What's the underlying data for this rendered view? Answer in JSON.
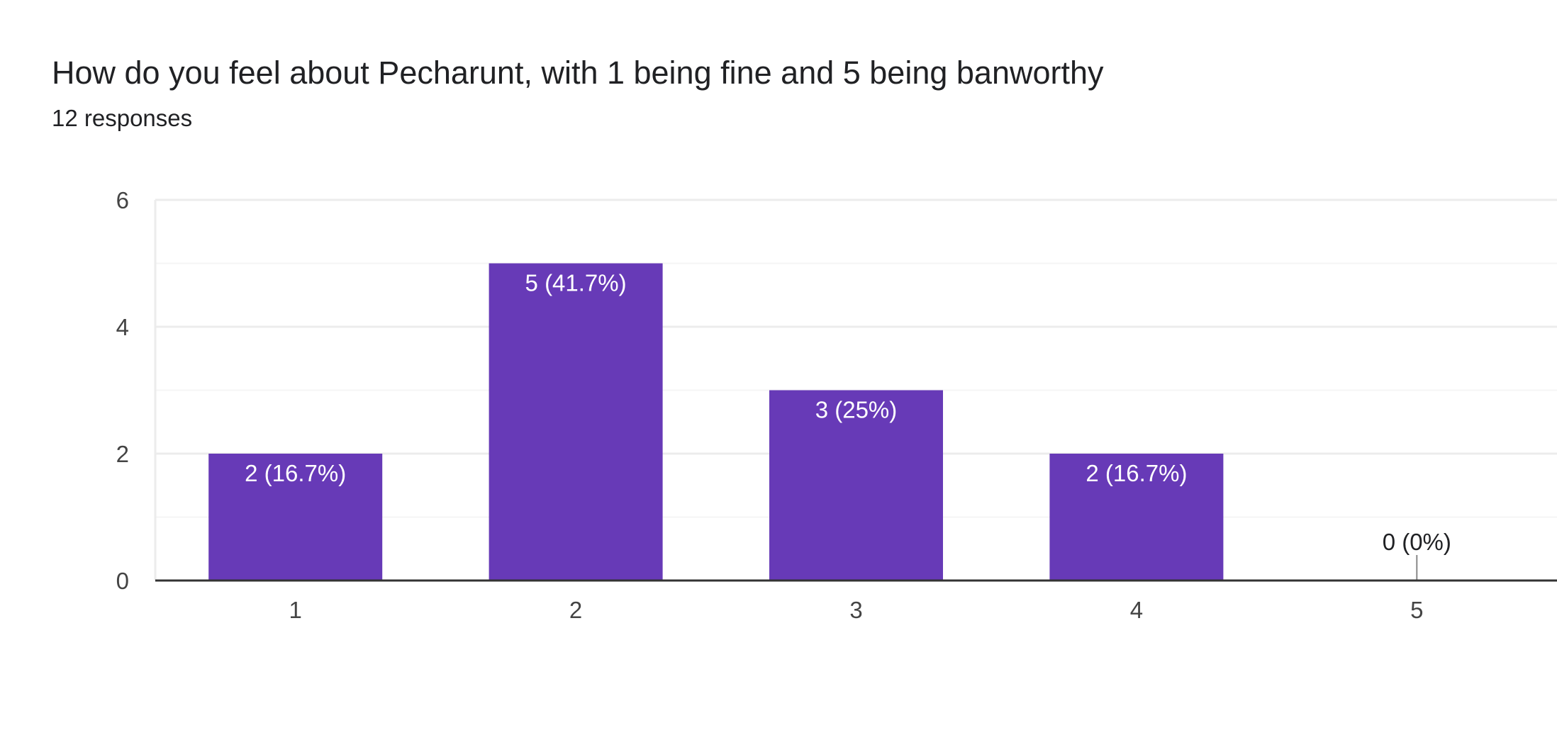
{
  "question": {
    "title": "How do you feel about Pecharunt, with 1 being fine and 5 being banworthy",
    "responses": "12 responses"
  },
  "colors": {
    "bar": "#673ab7",
    "grid": "#ececec",
    "minor_grid": "#f5f5f5",
    "axis_line": "#333333",
    "tick_text": "#444444",
    "label_inside": "#ffffff",
    "label_outside": "#202124"
  },
  "chart_data": {
    "type": "bar",
    "categories": [
      "1",
      "2",
      "3",
      "4",
      "5"
    ],
    "values": [
      2,
      5,
      3,
      2,
      0
    ],
    "data_labels": [
      "2 (16.7%)",
      "5 (41.7%)",
      "3 (25%)",
      "2 (16.7%)",
      "0 (0%)"
    ],
    "title": "How do you feel about Pecharunt, with 1 being fine and 5 being banworthy",
    "xlabel": "",
    "ylabel": "",
    "ylim": [
      0,
      6
    ],
    "yticks": [
      0,
      2,
      4,
      6
    ],
    "grid": true,
    "legend": "none"
  }
}
